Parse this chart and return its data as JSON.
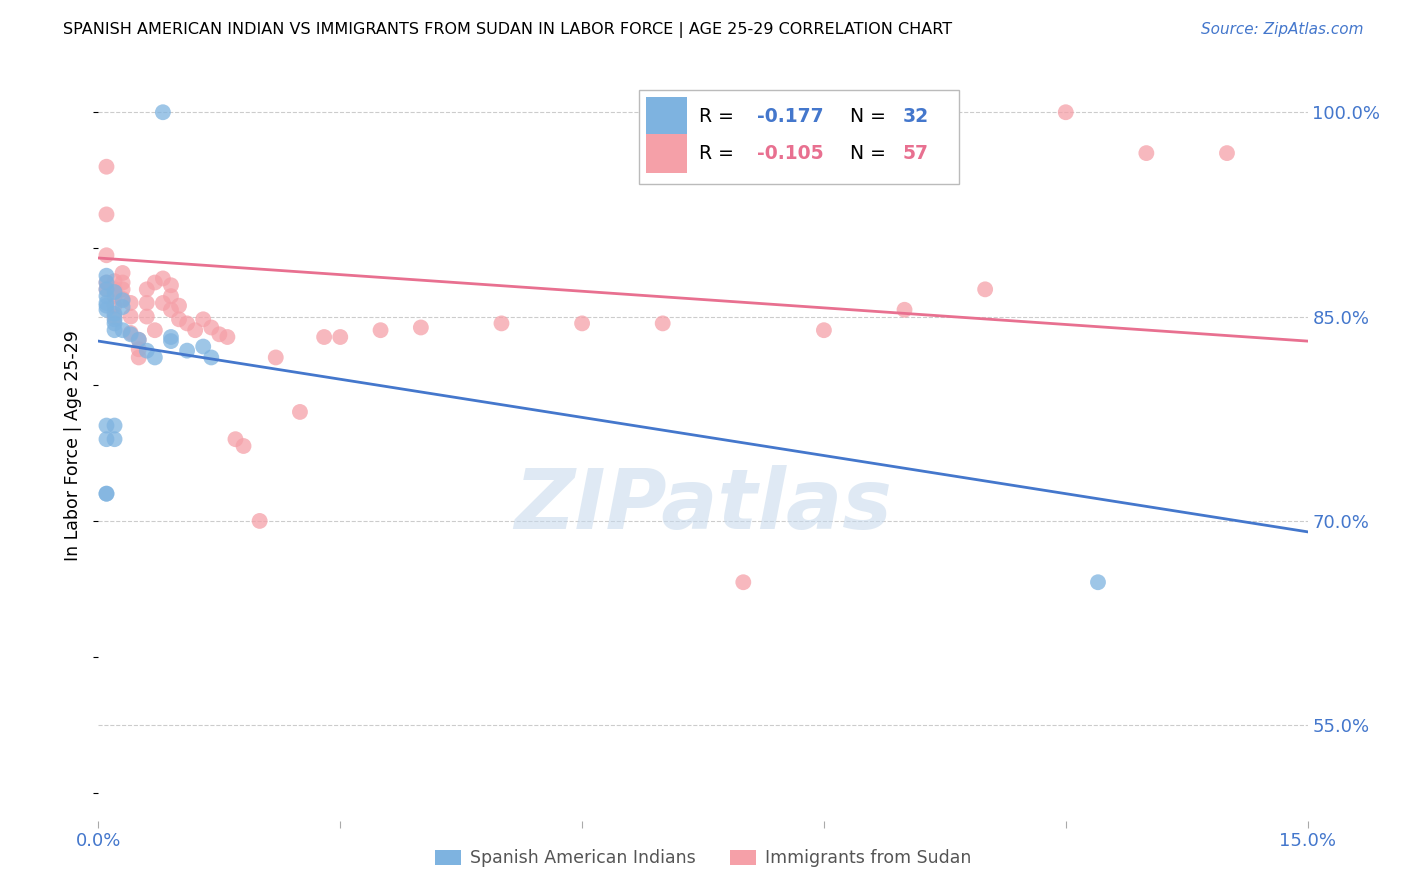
{
  "title": "SPANISH AMERICAN INDIAN VS IMMIGRANTS FROM SUDAN IN LABOR FORCE | AGE 25-29 CORRELATION CHART",
  "source": "Source: ZipAtlas.com",
  "ylabel": "In Labor Force | Age 25-29",
  "xlim": [
    0.0,
    0.15
  ],
  "ylim": [
    0.48,
    1.03
  ],
  "yticks": [
    0.55,
    0.7,
    0.85,
    1.0
  ],
  "ytick_labels": [
    "55.0%",
    "70.0%",
    "85.0%",
    "100.0%"
  ],
  "xtick_positions": [
    0.0,
    0.03,
    0.06,
    0.09,
    0.12,
    0.15
  ],
  "xtick_labels": [
    "0.0%",
    "",
    "",
    "",
    "",
    "15.0%"
  ],
  "blue_color": "#7EB3E0",
  "pink_color": "#F5A0A8",
  "blue_line_color": "#4477CC",
  "pink_line_color": "#E87090",
  "legend_r_blue": "-0.177",
  "legend_n_blue": "32",
  "legend_r_pink": "-0.105",
  "legend_n_pink": "57",
  "blue_scatter_x": [
    0.001,
    0.001,
    0.001,
    0.001,
    0.001,
    0.001,
    0.001,
    0.002,
    0.002,
    0.002,
    0.002,
    0.002,
    0.003,
    0.003,
    0.003,
    0.004,
    0.005,
    0.006,
    0.007,
    0.009,
    0.009,
    0.011,
    0.013,
    0.014,
    0.001,
    0.001,
    0.002,
    0.002,
    0.001,
    0.001,
    0.124,
    0.008
  ],
  "blue_scatter_y": [
    0.88,
    0.875,
    0.87,
    0.865,
    0.86,
    0.858,
    0.855,
    0.868,
    0.852,
    0.848,
    0.845,
    0.84,
    0.862,
    0.857,
    0.84,
    0.837,
    0.833,
    0.825,
    0.82,
    0.835,
    0.832,
    0.825,
    0.828,
    0.82,
    0.77,
    0.76,
    0.77,
    0.76,
    0.72,
    0.72,
    0.655,
    1.0
  ],
  "pink_scatter_x": [
    0.001,
    0.001,
    0.001,
    0.001,
    0.001,
    0.002,
    0.002,
    0.002,
    0.002,
    0.002,
    0.003,
    0.003,
    0.003,
    0.003,
    0.004,
    0.004,
    0.004,
    0.005,
    0.005,
    0.005,
    0.006,
    0.006,
    0.006,
    0.007,
    0.007,
    0.008,
    0.008,
    0.009,
    0.009,
    0.009,
    0.01,
    0.01,
    0.011,
    0.012,
    0.013,
    0.014,
    0.015,
    0.016,
    0.017,
    0.018,
    0.02,
    0.022,
    0.025,
    0.028,
    0.03,
    0.035,
    0.04,
    0.05,
    0.06,
    0.07,
    0.09,
    0.11,
    0.12,
    0.13,
    0.14,
    0.1,
    0.08
  ],
  "pink_scatter_y": [
    0.96,
    0.925,
    0.895,
    0.875,
    0.87,
    0.876,
    0.87,
    0.865,
    0.858,
    0.85,
    0.882,
    0.875,
    0.87,
    0.863,
    0.86,
    0.85,
    0.838,
    0.833,
    0.826,
    0.82,
    0.87,
    0.86,
    0.85,
    0.875,
    0.84,
    0.878,
    0.86,
    0.873,
    0.865,
    0.855,
    0.858,
    0.848,
    0.845,
    0.84,
    0.848,
    0.842,
    0.837,
    0.835,
    0.76,
    0.755,
    0.7,
    0.82,
    0.78,
    0.835,
    0.835,
    0.84,
    0.842,
    0.845,
    0.845,
    0.845,
    0.84,
    0.87,
    1.0,
    0.97,
    0.97,
    0.855,
    0.655
  ],
  "blue_line_y0": 0.832,
  "blue_line_y1": 0.692,
  "pink_line_y0": 0.893,
  "pink_line_y1": 0.832,
  "watermark": "ZIPatlas",
  "background_color": "#FFFFFF",
  "grid_color": "#CCCCCC",
  "tick_color": "#4477CC",
  "axis_label_color": "#000000"
}
